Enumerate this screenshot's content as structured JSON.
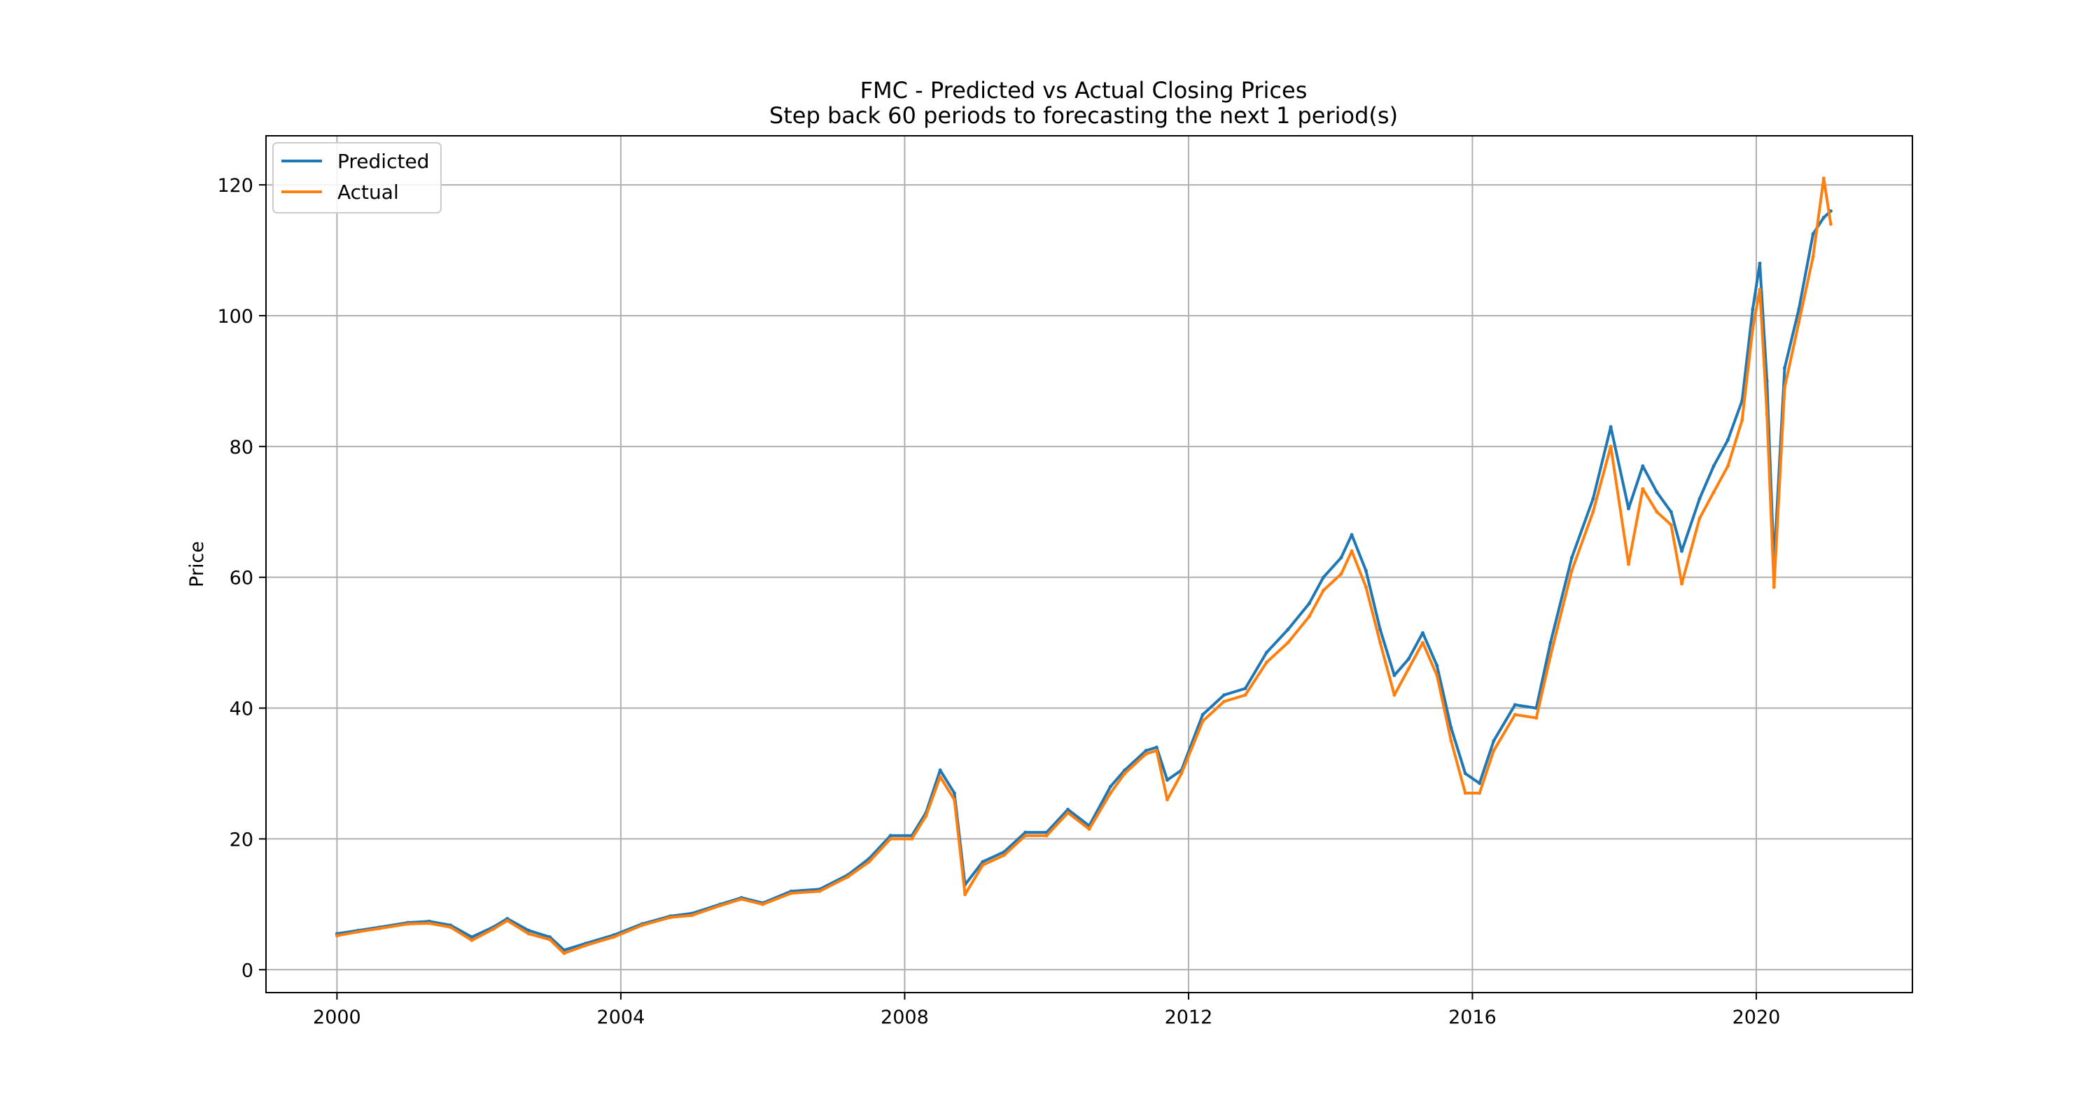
{
  "chart_data": {
    "type": "line",
    "title": "FMC - Predicted vs Actual Closing Prices",
    "subtitle": "Step back 60 periods to forecasting the next 1 period(s)",
    "xlabel": "",
    "ylabel": "Price",
    "xlim": [
      1999.0,
      2022.2
    ],
    "ylim": [
      -3.5,
      127.5
    ],
    "x_ticks": [
      "2000",
      "2004",
      "2008",
      "2012",
      "2016",
      "2020"
    ],
    "x_tick_values": [
      2000,
      2004,
      2008,
      2012,
      2016,
      2020
    ],
    "y_ticks": [
      "0",
      "20",
      "40",
      "60",
      "80",
      "100",
      "120"
    ],
    "y_tick_values": [
      0,
      20,
      40,
      60,
      80,
      100,
      120
    ],
    "grid": true,
    "legend_position": "top-left",
    "series": [
      {
        "name": "Predicted",
        "color": "#1f77b4",
        "x": [
          2000.0,
          2000.3,
          2000.6,
          2001.0,
          2001.3,
          2001.6,
          2001.9,
          2002.2,
          2002.4,
          2002.7,
          2003.0,
          2003.2,
          2003.5,
          2003.9,
          2004.3,
          2004.7,
          2005.0,
          2005.4,
          2005.7,
          2006.0,
          2006.4,
          2006.8,
          2007.2,
          2007.5,
          2007.8,
          2008.1,
          2008.3,
          2008.5,
          2008.7,
          2008.85,
          2009.1,
          2009.4,
          2009.7,
          2010.0,
          2010.3,
          2010.6,
          2010.9,
          2011.1,
          2011.4,
          2011.55,
          2011.7,
          2011.9,
          2012.2,
          2012.5,
          2012.8,
          2013.1,
          2013.4,
          2013.7,
          2013.9,
          2014.15,
          2014.3,
          2014.5,
          2014.7,
          2014.9,
          2015.1,
          2015.3,
          2015.5,
          2015.7,
          2015.9,
          2016.1,
          2016.3,
          2016.6,
          2016.9,
          2017.1,
          2017.4,
          2017.7,
          2017.95,
          2018.2,
          2018.4,
          2018.6,
          2018.8,
          2018.95,
          2019.2,
          2019.4,
          2019.6,
          2019.8,
          2019.95,
          2020.05,
          2020.15,
          2020.25,
          2020.4,
          2020.6,
          2020.8,
          2020.95,
          2021.05
        ],
        "y": [
          5.5,
          6.0,
          6.5,
          7.2,
          7.4,
          6.8,
          5.0,
          6.5,
          7.8,
          6.0,
          5.0,
          3.0,
          4.0,
          5.3,
          7.0,
          8.2,
          8.6,
          10.0,
          11.0,
          10.2,
          12.0,
          12.3,
          14.5,
          17.0,
          20.5,
          20.5,
          24.0,
          30.5,
          27.0,
          13.0,
          16.5,
          18.0,
          21.0,
          21.0,
          24.5,
          22.0,
          28.0,
          30.5,
          33.5,
          34.0,
          29.0,
          30.5,
          39.0,
          42.0,
          43.0,
          48.5,
          52.0,
          56.0,
          60.0,
          63.0,
          66.5,
          61.0,
          52.0,
          45.0,
          47.5,
          51.5,
          46.5,
          37.0,
          30.0,
          28.5,
          35.0,
          40.5,
          40.0,
          50.0,
          63.0,
          72.0,
          83.0,
          70.5,
          77.0,
          73.0,
          70.0,
          64.0,
          72.0,
          77.0,
          81.0,
          87.0,
          101.0,
          108.0,
          90.0,
          62.0,
          92.0,
          101.0,
          112.5,
          115.0,
          116.0
        ]
      },
      {
        "name": "Actual",
        "color": "#ff7f0e",
        "x": [
          2000.0,
          2000.3,
          2000.6,
          2001.0,
          2001.3,
          2001.6,
          2001.9,
          2002.2,
          2002.4,
          2002.7,
          2003.0,
          2003.2,
          2003.5,
          2003.9,
          2004.3,
          2004.7,
          2005.0,
          2005.4,
          2005.7,
          2006.0,
          2006.4,
          2006.8,
          2007.2,
          2007.5,
          2007.8,
          2008.1,
          2008.3,
          2008.5,
          2008.7,
          2008.85,
          2009.1,
          2009.4,
          2009.7,
          2010.0,
          2010.3,
          2010.6,
          2010.9,
          2011.1,
          2011.4,
          2011.55,
          2011.7,
          2011.9,
          2012.2,
          2012.5,
          2012.8,
          2013.1,
          2013.4,
          2013.7,
          2013.9,
          2014.15,
          2014.3,
          2014.5,
          2014.7,
          2014.9,
          2015.1,
          2015.3,
          2015.5,
          2015.7,
          2015.9,
          2016.1,
          2016.3,
          2016.6,
          2016.9,
          2017.1,
          2017.4,
          2017.7,
          2017.95,
          2018.2,
          2018.4,
          2018.6,
          2018.8,
          2018.95,
          2019.2,
          2019.4,
          2019.6,
          2019.8,
          2019.95,
          2020.05,
          2020.15,
          2020.25,
          2020.4,
          2020.6,
          2020.8,
          2020.95,
          2021.05
        ],
        "y": [
          5.2,
          5.8,
          6.3,
          7.0,
          7.1,
          6.5,
          4.5,
          6.2,
          7.5,
          5.5,
          4.6,
          2.5,
          3.7,
          5.0,
          6.8,
          8.0,
          8.3,
          9.8,
          10.8,
          10.0,
          11.7,
          12.0,
          14.2,
          16.5,
          20.0,
          20.0,
          23.5,
          29.5,
          26.0,
          11.5,
          16.0,
          17.5,
          20.5,
          20.5,
          24.0,
          21.5,
          27.0,
          30.0,
          33.0,
          33.5,
          26.0,
          30.0,
          38.0,
          41.0,
          42.0,
          47.0,
          50.0,
          54.0,
          58.0,
          60.5,
          64.0,
          58.5,
          50.0,
          42.0,
          46.0,
          50.0,
          45.0,
          35.0,
          27.0,
          27.0,
          33.5,
          39.0,
          38.5,
          48.0,
          61.0,
          70.0,
          80.0,
          62.0,
          73.5,
          70.0,
          68.0,
          59.0,
          69.0,
          73.0,
          77.0,
          84.0,
          98.0,
          104.0,
          85.0,
          58.5,
          89.0,
          99.0,
          109.0,
          121.0,
          114.0
        ]
      }
    ]
  }
}
